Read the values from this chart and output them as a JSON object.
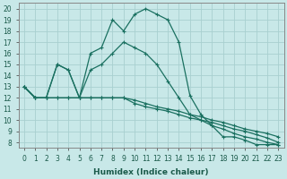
{
  "xlabel": "Humidex (Indice chaleur)",
  "xlim": [
    -0.5,
    23.5
  ],
  "ylim": [
    7.5,
    20.5
  ],
  "xticks": [
    0,
    1,
    2,
    3,
    4,
    5,
    6,
    7,
    8,
    9,
    10,
    11,
    12,
    13,
    14,
    15,
    16,
    17,
    18,
    19,
    20,
    21,
    22,
    23
  ],
  "yticks": [
    8,
    9,
    10,
    11,
    12,
    13,
    14,
    15,
    16,
    17,
    18,
    19,
    20
  ],
  "bg_color": "#c8e8e8",
  "grid_color": "#a8d0d0",
  "line_color": "#1a7060",
  "lines": [
    {
      "x": [
        0,
        1,
        2,
        3,
        4,
        5,
        6,
        7,
        8,
        9,
        10,
        11,
        12,
        13,
        14,
        15,
        16,
        17,
        18,
        19,
        20,
        21,
        22,
        23
      ],
      "y": [
        13,
        12,
        12,
        15,
        14.5,
        12,
        16,
        16.5,
        19,
        18,
        19.5,
        20,
        19.5,
        19,
        17,
        12.2,
        10.5,
        9.5,
        8.5,
        8.5,
        8.2,
        7.8,
        7.8,
        7.8
      ]
    },
    {
      "x": [
        0,
        1,
        2,
        3,
        4,
        5,
        6,
        7,
        8,
        9,
        10,
        11,
        12,
        13,
        14,
        15,
        16,
        17,
        18,
        19,
        20,
        21,
        22,
        23
      ],
      "y": [
        13,
        12,
        12,
        15,
        14.5,
        12,
        14.5,
        15,
        16,
        17,
        16.5,
        16,
        15,
        13.5,
        12,
        10.5,
        10.0,
        9.5,
        9.2,
        8.8,
        8.5,
        8.3,
        8.0,
        7.8
      ]
    },
    {
      "x": [
        0,
        1,
        2,
        3,
        4,
        5,
        6,
        7,
        8,
        9,
        10,
        11,
        12,
        13,
        14,
        15,
        16,
        17,
        18,
        19,
        20,
        21,
        22,
        23
      ],
      "y": [
        13,
        12,
        12,
        12,
        12,
        12,
        12,
        12,
        12,
        12,
        11.8,
        11.5,
        11.2,
        11.0,
        10.8,
        10.5,
        10.3,
        10.0,
        9.8,
        9.5,
        9.2,
        9.0,
        8.8,
        8.5
      ]
    },
    {
      "x": [
        0,
        1,
        2,
        3,
        4,
        5,
        6,
        7,
        8,
        9,
        10,
        11,
        12,
        13,
        14,
        15,
        16,
        17,
        18,
        19,
        20,
        21,
        22,
        23
      ],
      "y": [
        13,
        12,
        12,
        12,
        12,
        12,
        12,
        12,
        12,
        12,
        11.5,
        11.2,
        11.0,
        10.8,
        10.5,
        10.2,
        10.0,
        9.8,
        9.5,
        9.2,
        9.0,
        8.7,
        8.4,
        8.0
      ]
    }
  ]
}
